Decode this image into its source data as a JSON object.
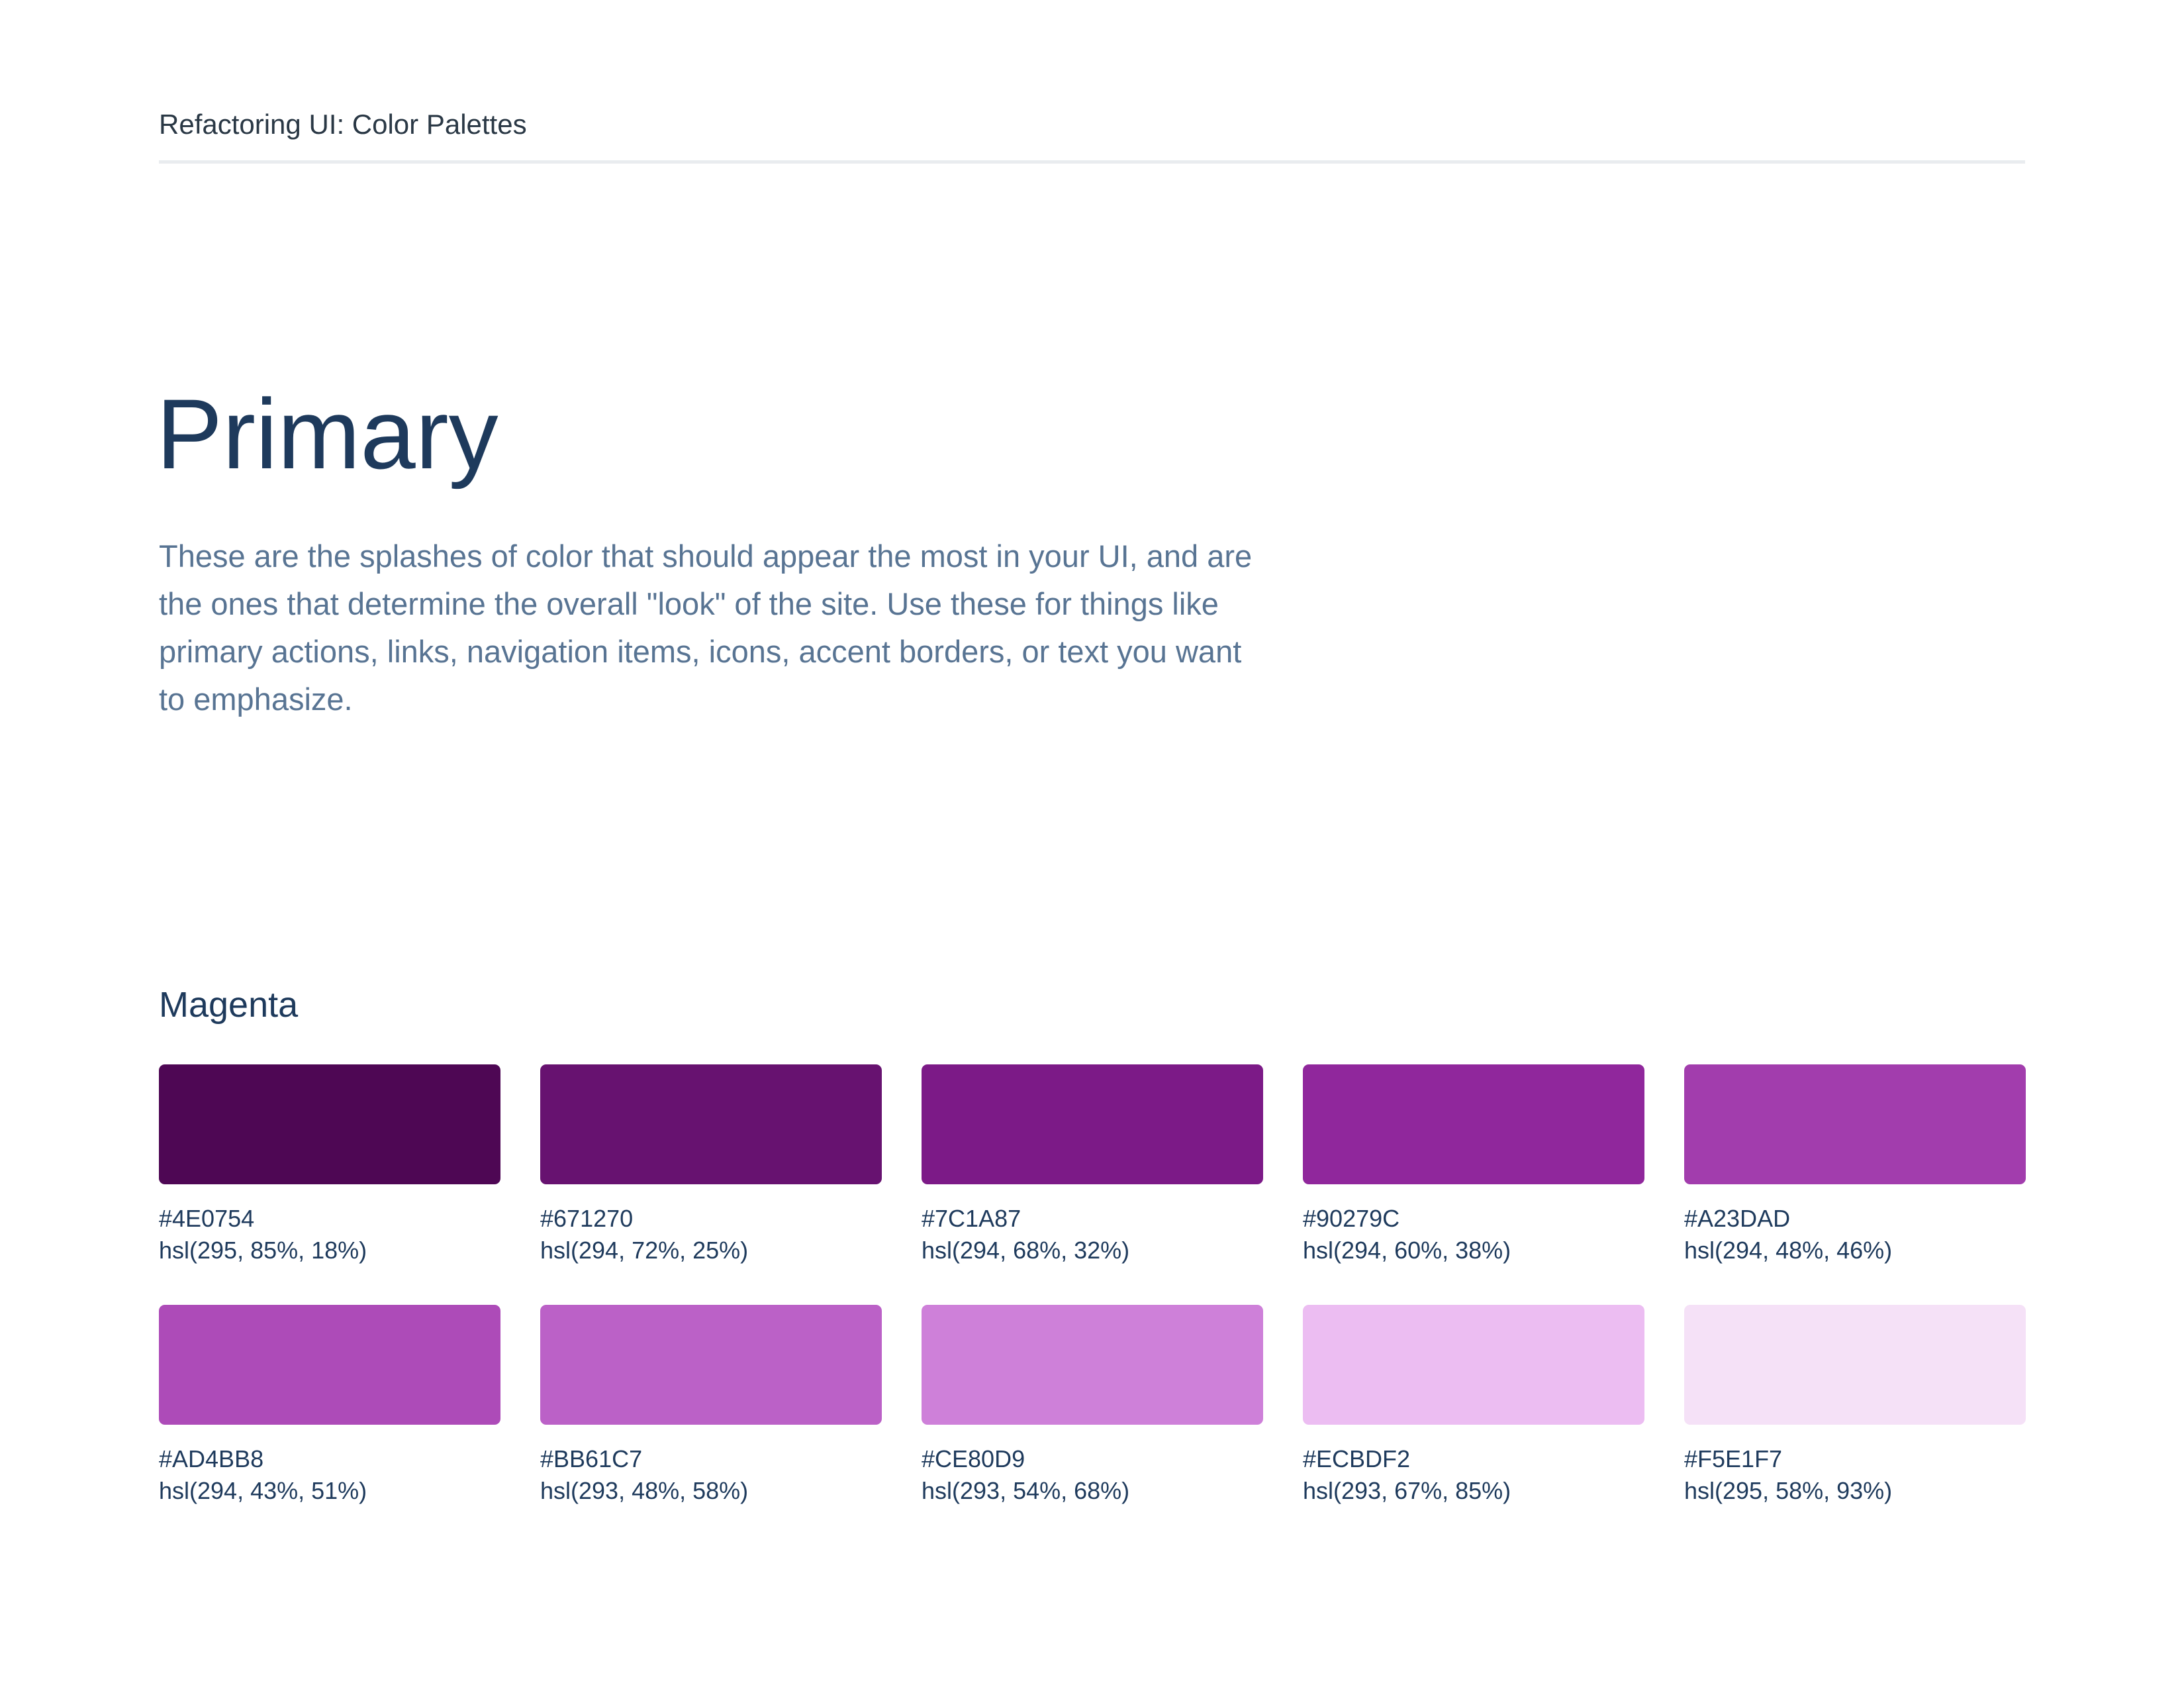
{
  "header": {
    "title": "Refactoring UI: Color Palettes"
  },
  "section": {
    "title": "Primary",
    "description": "These are the splashes of color that should appear the most in your UI, and are the ones that determine the overall \"look\" of the site. Use these for things like primary actions, links, navigation items, icons, accent borders, or text you want to emphasize."
  },
  "palette": {
    "name": "Magenta",
    "swatches": [
      {
        "hex": "#4E0754",
        "hsl": "hsl(295, 85%, 18%)"
      },
      {
        "hex": "#671270",
        "hsl": "hsl(294, 72%, 25%)"
      },
      {
        "hex": "#7C1A87",
        "hsl": "hsl(294, 68%, 32%)"
      },
      {
        "hex": "#90279C",
        "hsl": "hsl(294, 60%, 38%)"
      },
      {
        "hex": "#A23DAD",
        "hsl": "hsl(294, 48%, 46%)"
      },
      {
        "hex": "#AD4BB8",
        "hsl": "hsl(294, 43%, 51%)"
      },
      {
        "hex": "#BB61C7",
        "hsl": "hsl(293, 48%, 58%)"
      },
      {
        "hex": "#CE80D9",
        "hsl": "hsl(293, 54%, 68%)"
      },
      {
        "hex": "#ECBDF2",
        "hsl": "hsl(293, 67%, 85%)"
      },
      {
        "hex": "#F5E1F7",
        "hsl": "hsl(295, 58%, 93%)"
      }
    ]
  }
}
